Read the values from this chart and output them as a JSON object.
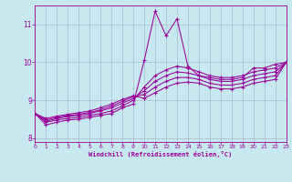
{
  "xlabel": "Windchill (Refroidissement éolien,°C)",
  "bg_color": "#c8e8f0",
  "line_color": "#990099",
  "grid_color": "#a0b0c8",
  "xlim": [
    0,
    23
  ],
  "ylim": [
    7.9,
    11.5
  ],
  "xticks": [
    0,
    1,
    2,
    3,
    4,
    5,
    6,
    7,
    8,
    9,
    10,
    11,
    12,
    13,
    14,
    15,
    16,
    17,
    18,
    19,
    20,
    21,
    22,
    23
  ],
  "yticks": [
    8,
    9,
    10,
    11
  ],
  "series": [
    [
      8.65,
      8.35,
      8.42,
      8.48,
      8.5,
      8.55,
      8.6,
      8.65,
      8.8,
      8.9,
      10.05,
      11.35,
      10.7,
      11.15,
      9.9,
      9.65,
      9.6,
      9.55,
      9.55,
      9.6,
      9.85,
      9.85,
      9.95,
      10.0
    ],
    [
      8.65,
      8.42,
      8.48,
      8.52,
      8.55,
      8.6,
      8.65,
      8.72,
      8.85,
      9.0,
      9.35,
      9.65,
      9.8,
      9.9,
      9.85,
      9.75,
      9.65,
      9.6,
      9.6,
      9.65,
      9.75,
      9.8,
      9.85,
      10.0
    ],
    [
      8.65,
      8.45,
      8.52,
      8.57,
      8.6,
      8.65,
      8.72,
      8.8,
      8.92,
      9.05,
      9.25,
      9.5,
      9.65,
      9.75,
      9.72,
      9.65,
      9.55,
      9.5,
      9.5,
      9.55,
      9.65,
      9.7,
      9.75,
      10.0
    ],
    [
      8.65,
      8.48,
      8.55,
      8.6,
      8.63,
      8.68,
      8.75,
      8.85,
      8.97,
      9.1,
      9.15,
      9.35,
      9.5,
      9.6,
      9.6,
      9.55,
      9.45,
      9.4,
      9.4,
      9.45,
      9.55,
      9.6,
      9.65,
      10.0
    ],
    [
      8.65,
      8.52,
      8.58,
      8.63,
      8.67,
      8.72,
      8.8,
      8.9,
      9.02,
      9.12,
      9.05,
      9.2,
      9.35,
      9.45,
      9.48,
      9.45,
      9.35,
      9.3,
      9.3,
      9.35,
      9.45,
      9.5,
      9.55,
      10.0
    ]
  ]
}
